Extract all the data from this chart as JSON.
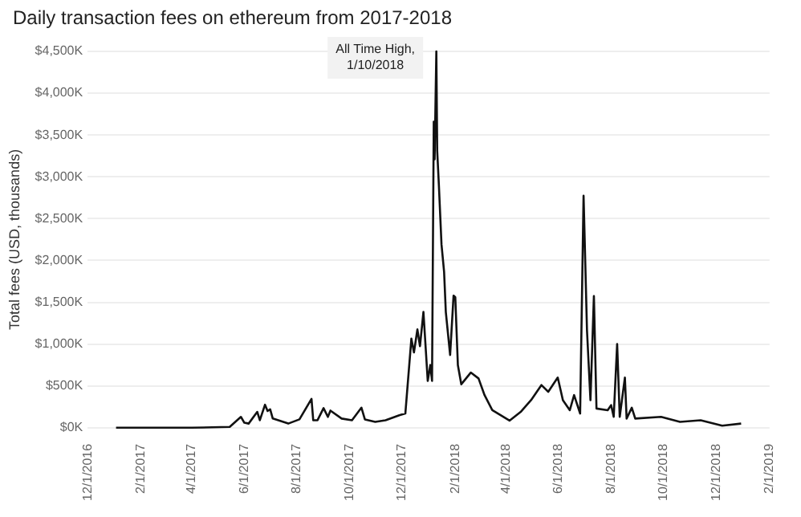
{
  "chart_data": {
    "type": "line",
    "title": "Daily transaction fees on ethereum from 2017-2018",
    "ylabel": "Total fees (USD, thousands)",
    "x": [
      "2017-01-03",
      "2017-02-15",
      "2017-04-01",
      "2017-05-15",
      "2017-05-28",
      "2017-06-01",
      "2017-06-06",
      "2017-06-16",
      "2017-06-19",
      "2017-06-25",
      "2017-06-28",
      "2017-07-01",
      "2017-07-04",
      "2017-07-22",
      "2017-08-04",
      "2017-08-18",
      "2017-08-20",
      "2017-08-25",
      "2017-09-01",
      "2017-09-06",
      "2017-09-09",
      "2017-09-22",
      "2017-10-04",
      "2017-10-15",
      "2017-10-19",
      "2017-10-31",
      "2017-11-12",
      "2017-11-28",
      "2017-12-05",
      "2017-12-12",
      "2017-12-15",
      "2017-12-19",
      "2017-12-22",
      "2017-12-26",
      "2017-12-31",
      "2018-01-03",
      "2018-01-05",
      "2018-01-07",
      "2018-01-08",
      "2018-01-10",
      "2018-01-11",
      "2018-01-13",
      "2018-01-16",
      "2018-01-19",
      "2018-01-21",
      "2018-01-26",
      "2018-01-30",
      "2018-02-01",
      "2018-02-04",
      "2018-02-08",
      "2018-02-19",
      "2018-02-28",
      "2018-03-07",
      "2018-03-16",
      "2018-04-05",
      "2018-04-18",
      "2018-04-30",
      "2018-05-12",
      "2018-05-20",
      "2018-05-31",
      "2018-06-06",
      "2018-06-14",
      "2018-06-19",
      "2018-06-26",
      "2018-06-30",
      "2018-07-04",
      "2018-07-08",
      "2018-07-12",
      "2018-07-15",
      "2018-07-28",
      "2018-08-01",
      "2018-08-04",
      "2018-08-08",
      "2018-08-11",
      "2018-08-17",
      "2018-08-19",
      "2018-08-25",
      "2018-08-29",
      "2018-09-28",
      "2018-10-20",
      "2018-11-13",
      "2018-12-08",
      "2018-12-30"
    ],
    "values": [
      0,
      0,
      0,
      10,
      130,
      60,
      50,
      190,
      90,
      275,
      200,
      220,
      110,
      50,
      100,
      345,
      90,
      90,
      235,
      130,
      205,
      110,
      90,
      240,
      100,
      70,
      90,
      150,
      170,
      1065,
      900,
      1175,
      975,
      1385,
      560,
      750,
      560,
      3660,
      3210,
      4500,
      3310,
      2890,
      2190,
      1865,
      1385,
      870,
      1580,
      1560,
      750,
      520,
      660,
      590,
      390,
      210,
      85,
      190,
      330,
      510,
      430,
      600,
      330,
      210,
      390,
      170,
      2775,
      1160,
      330,
      1575,
      230,
      210,
      270,
      130,
      1000,
      130,
      600,
      110,
      240,
      110,
      130,
      70,
      90,
      25,
      50
    ],
    "color": "#111111",
    "xlim": [
      "2016-12-01",
      "2019-02-01"
    ],
    "xticks": [
      {
        "value": "2016-12-01",
        "label": "12/1/2016"
      },
      {
        "value": "2017-02-01",
        "label": "2/1/2017"
      },
      {
        "value": "2017-04-01",
        "label": "4/1/2017"
      },
      {
        "value": "2017-06-01",
        "label": "6/1/2017"
      },
      {
        "value": "2017-08-01",
        "label": "8/1/2017"
      },
      {
        "value": "2017-10-01",
        "label": "10/1/2017"
      },
      {
        "value": "2017-12-01",
        "label": "12/1/2017"
      },
      {
        "value": "2018-02-01",
        "label": "2/1/2018"
      },
      {
        "value": "2018-04-01",
        "label": "4/1/2018"
      },
      {
        "value": "2018-06-01",
        "label": "6/1/2018"
      },
      {
        "value": "2018-08-01",
        "label": "8/1/2018"
      },
      {
        "value": "2018-10-01",
        "label": "10/1/2018"
      },
      {
        "value": "2018-12-01",
        "label": "12/1/2018"
      },
      {
        "value": "2019-02-01",
        "label": "2/1/2019"
      }
    ],
    "ylim": [
      0,
      4500
    ],
    "yticks": [
      {
        "value": 0,
        "label": "$0K"
      },
      {
        "value": 500,
        "label": "$500K"
      },
      {
        "value": 1000,
        "label": "$1,000K"
      },
      {
        "value": 1500,
        "label": "$1,500K"
      },
      {
        "value": 2000,
        "label": "$2,000K"
      },
      {
        "value": 2500,
        "label": "$2,500K"
      },
      {
        "value": 3000,
        "label": "$3,000K"
      },
      {
        "value": 3500,
        "label": "$3,500K"
      },
      {
        "value": 4000,
        "label": "$4,000K"
      },
      {
        "value": 4500,
        "label": "$4,500K"
      }
    ],
    "grid": "y",
    "legend": false,
    "marker": "none",
    "line_style": "solid",
    "annotations": [
      {
        "text": "All Time High,\n1/10/2018",
        "x": "2018-01-10",
        "y": 4500
      }
    ]
  }
}
